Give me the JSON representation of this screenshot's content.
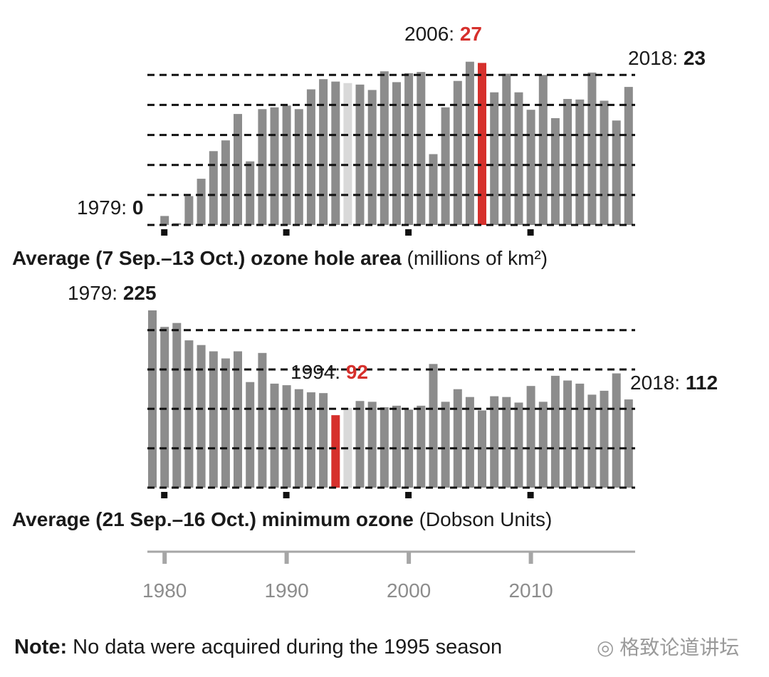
{
  "chart_data": [
    {
      "type": "bar",
      "title": "Average (7 Sep.–13 Oct.) ozone hole area",
      "unit": "(millions of km²)",
      "x": [
        1979,
        1980,
        1981,
        1982,
        1983,
        1984,
        1985,
        1986,
        1987,
        1988,
        1989,
        1990,
        1991,
        1992,
        1993,
        1994,
        1995,
        1996,
        1997,
        1998,
        1999,
        2000,
        2001,
        2002,
        2003,
        2004,
        2005,
        2006,
        2007,
        2008,
        2009,
        2010,
        2011,
        2012,
        2013,
        2014,
        2015,
        2016,
        2017,
        2018
      ],
      "values": [
        0,
        1.5,
        0.3,
        4.8,
        7.7,
        12.3,
        14.1,
        18.5,
        10.6,
        19.3,
        19.6,
        19.9,
        19.3,
        22.6,
        24.3,
        23.9,
        null,
        23.4,
        22.5,
        25.6,
        23.8,
        25.3,
        25.5,
        11.8,
        19.6,
        24.0,
        27.2,
        27.0,
        22.1,
        25.2,
        22.1,
        19.2,
        25.0,
        17.8,
        21.0,
        20.9,
        25.4,
        20.7,
        17.4,
        23.0
      ],
      "missing_year": 1995,
      "ylim": [
        0,
        28
      ],
      "grid": "dashed lines every 5 units",
      "annotations": {
        "start_year": "1979:",
        "start_value": "0",
        "peak_year": "2006:",
        "peak_value": "27",
        "end_year": "2018:",
        "end_value": "23"
      },
      "highlight_year": 2006
    },
    {
      "type": "bar",
      "title": "Average (21 Sep.–16 Oct.) minimum ozone",
      "unit": "(Dobson Units)",
      "x": [
        1979,
        1980,
        1981,
        1982,
        1983,
        1984,
        1985,
        1986,
        1987,
        1988,
        1989,
        1990,
        1991,
        1992,
        1993,
        1994,
        1995,
        1996,
        1997,
        1998,
        1999,
        2000,
        2001,
        2002,
        2003,
        2004,
        2005,
        2006,
        2007,
        2008,
        2009,
        2010,
        2011,
        2012,
        2013,
        2014,
        2015,
        2016,
        2017,
        2018
      ],
      "values": [
        225,
        204,
        209,
        187,
        181,
        173,
        164,
        173,
        134,
        171,
        132,
        130,
        125,
        121,
        120,
        92,
        null,
        110,
        109,
        102,
        104,
        99,
        104,
        157,
        109,
        125,
        115,
        98,
        116,
        115,
        108,
        129,
        109,
        142,
        136,
        132,
        118,
        123,
        145,
        112
      ],
      "missing_year": 1995,
      "ylim": [
        0,
        225
      ],
      "grid": "dashed lines every 50 units",
      "annotations": {
        "start_year": "1979:",
        "start_value": "225",
        "low_year": "1994:",
        "low_value": "92",
        "end_year": "2018:",
        "end_value": "112"
      },
      "highlight_year": 1994
    }
  ],
  "axis": {
    "ticks": [
      "1980",
      "1990",
      "2000",
      "2010"
    ]
  },
  "note": {
    "label": "Note:",
    "text": " No data were acquired during the 1995 season"
  },
  "watermark": "格致论道讲坛",
  "colors": {
    "bar": "#8c8c8c",
    "missing_bar": "#d9d9d9",
    "highlight": "#d6302c",
    "grid": "#111111",
    "axis": "#a6a6a6"
  }
}
